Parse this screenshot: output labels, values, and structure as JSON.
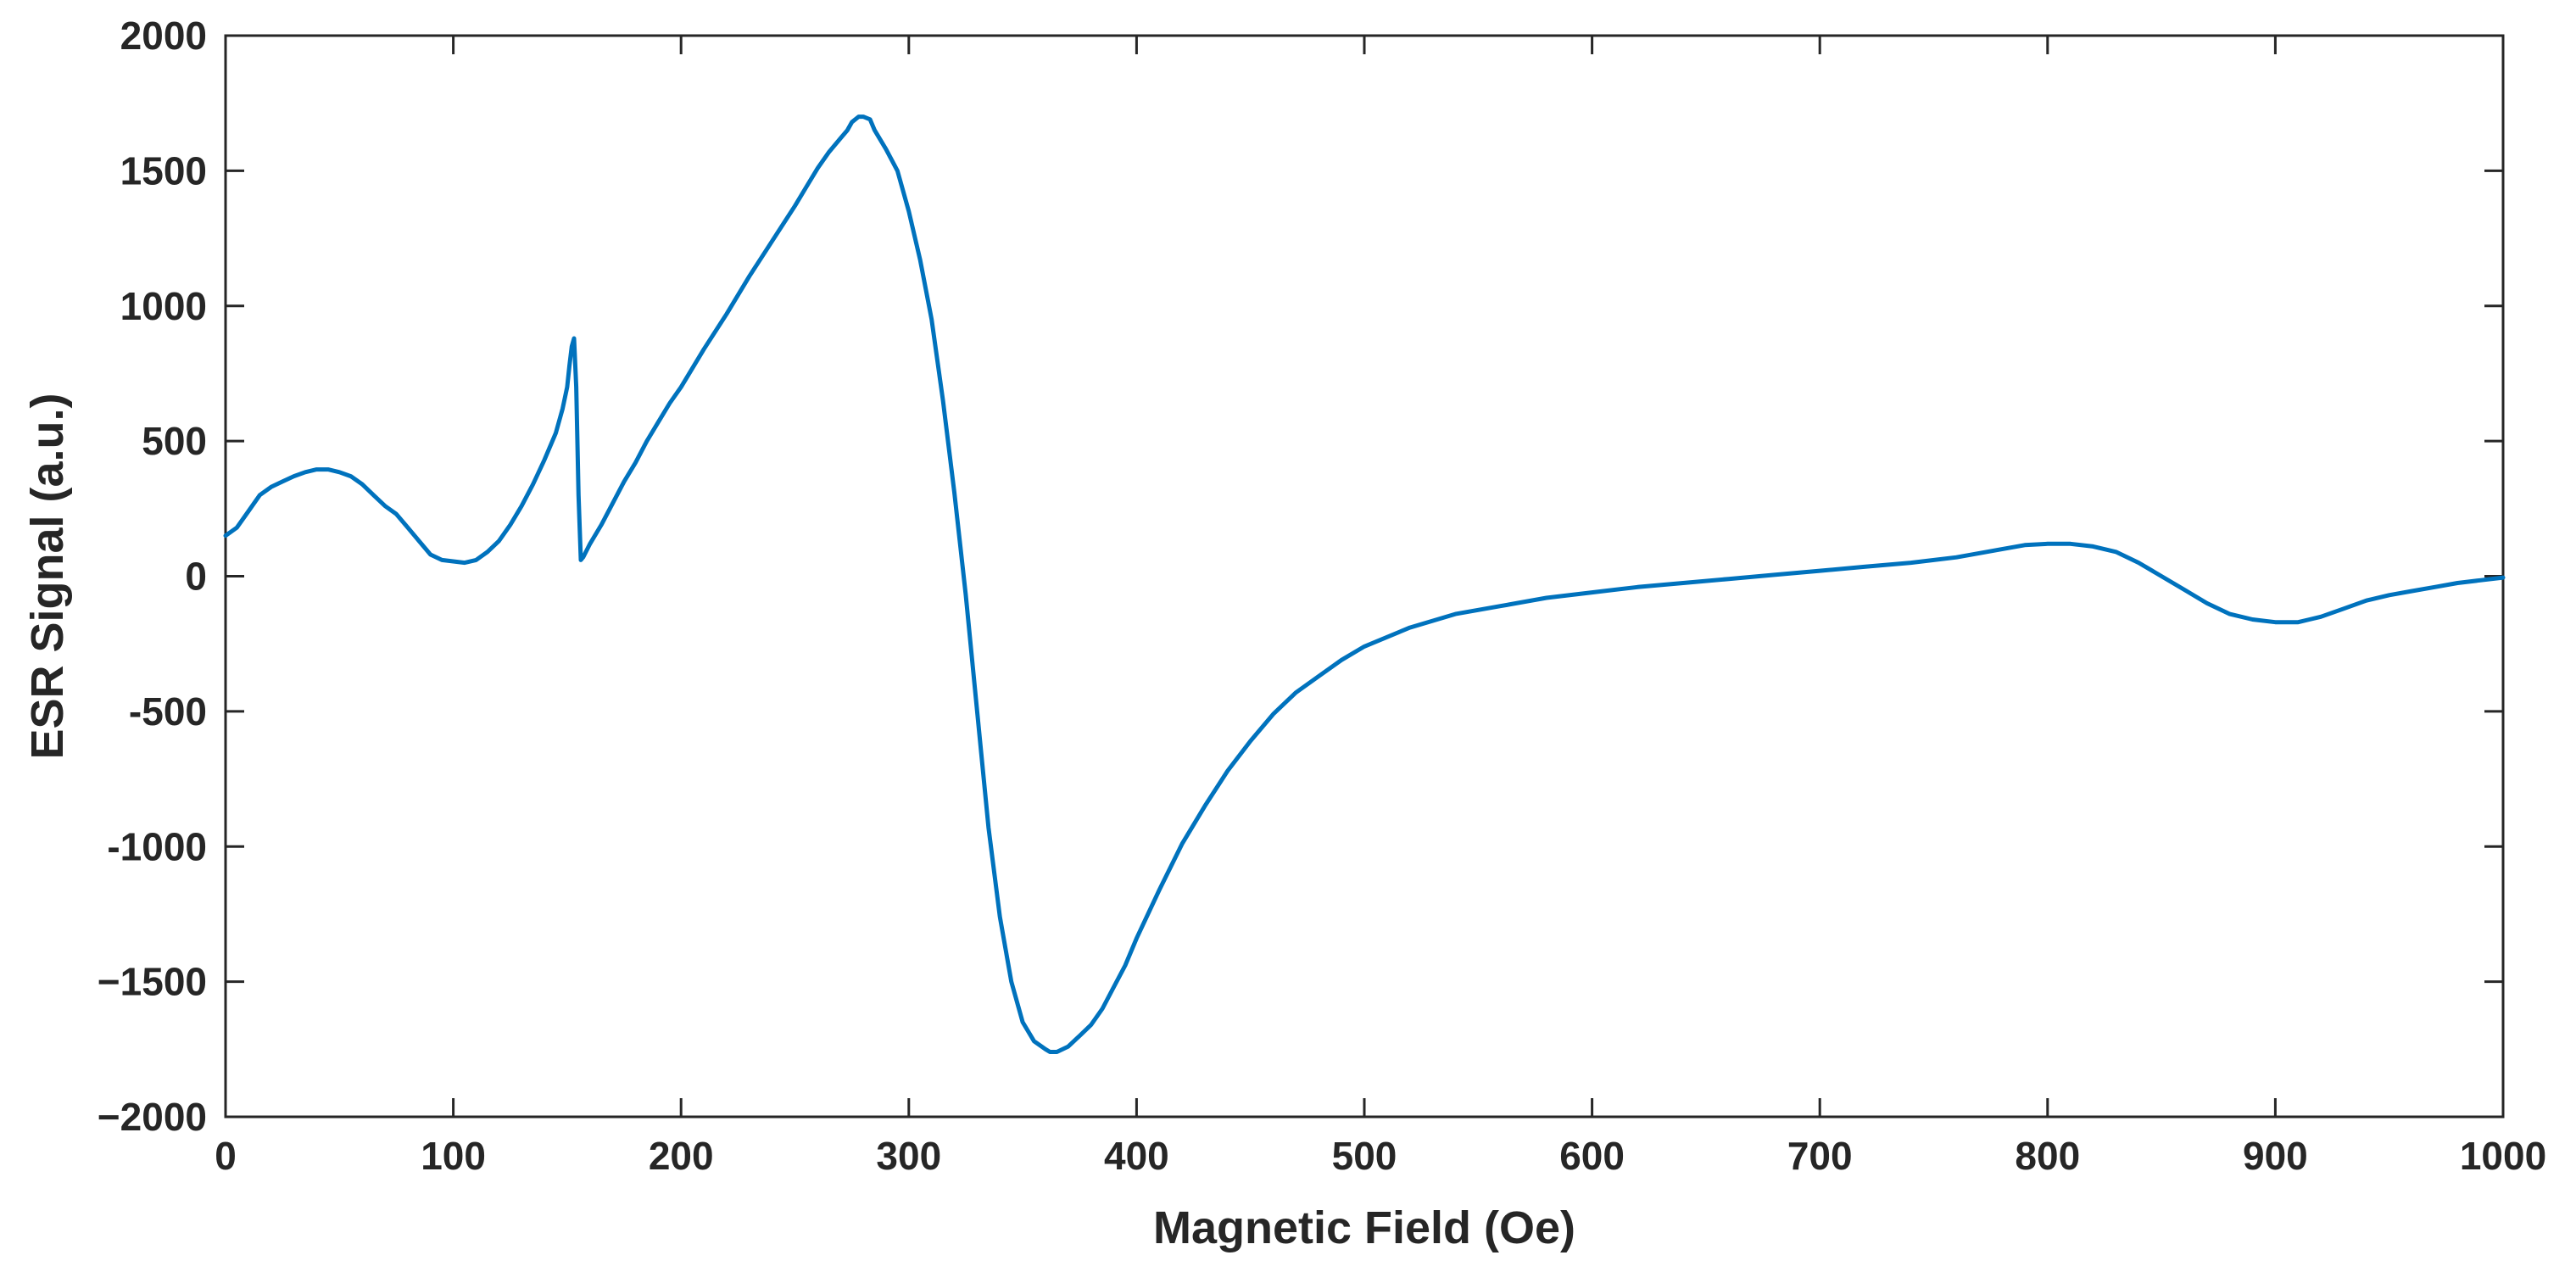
{
  "chart_data": {
    "type": "line",
    "title": "",
    "xlabel": "Magnetic Field (Oe)",
    "ylabel": "ESR Signal (a.u.)",
    "xlim": [
      0,
      1000
    ],
    "ylim": [
      -2000,
      2000
    ],
    "xticks": [
      0,
      100,
      200,
      300,
      400,
      500,
      600,
      700,
      800,
      900,
      1000
    ],
    "yticks": [
      -2000,
      -1500,
      -1000,
      -500,
      0,
      500,
      1000,
      1500,
      2000
    ],
    "xtick_labels": [
      "0",
      "100",
      "200",
      "300",
      "400",
      "500",
      "600",
      "700",
      "800",
      "900",
      "1000"
    ],
    "ytick_labels": [
      "−2000",
      "−1500",
      "-1000",
      "-500",
      "0",
      "500",
      "1000",
      "1500",
      "2000"
    ],
    "grid": false,
    "box": true,
    "line_color": "#0072BD",
    "series": [
      {
        "x": [
          0,
          5,
          10,
          15,
          20,
          25,
          30,
          35,
          40,
          45,
          50,
          55,
          60,
          65,
          70,
          75,
          80,
          85,
          90,
          95,
          100,
          105,
          110,
          115,
          120,
          125,
          130,
          135,
          140,
          145,
          148,
          150,
          151,
          152,
          153,
          154,
          155,
          156,
          157,
          160,
          165,
          170,
          175,
          180,
          185,
          190,
          195,
          200,
          210,
          220,
          230,
          240,
          250,
          255,
          260,
          265,
          270,
          273,
          275,
          278,
          280,
          283,
          285,
          290,
          295,
          300,
          305,
          310,
          315,
          320,
          325,
          330,
          335,
          340,
          345,
          350,
          355,
          360,
          362,
          365,
          370,
          375,
          380,
          385,
          390,
          395,
          400,
          410,
          420,
          430,
          440,
          450,
          460,
          470,
          480,
          490,
          500,
          520,
          540,
          560,
          580,
          600,
          620,
          640,
          660,
          680,
          700,
          720,
          740,
          760,
          780,
          790,
          800,
          810,
          820,
          830,
          840,
          850,
          860,
          870,
          880,
          890,
          900,
          905,
          910,
          915,
          920,
          930,
          940,
          950,
          960,
          970,
          980,
          990,
          1000
        ],
        "y": [
          150,
          180,
          240,
          300,
          330,
          350,
          370,
          385,
          395,
          395,
          385,
          370,
          340,
          300,
          260,
          230,
          180,
          130,
          80,
          60,
          55,
          50,
          60,
          90,
          130,
          190,
          260,
          340,
          430,
          530,
          620,
          700,
          780,
          850,
          880,
          700,
          300,
          60,
          70,
          120,
          190,
          270,
          350,
          420,
          500,
          570,
          640,
          700,
          840,
          970,
          1110,
          1240,
          1370,
          1440,
          1510,
          1570,
          1620,
          1650,
          1680,
          1700,
          1700,
          1690,
          1650,
          1580,
          1500,
          1350,
          1170,
          950,
          650,
          310,
          -70,
          -500,
          -930,
          -1260,
          -1500,
          -1650,
          -1720,
          -1750,
          -1760,
          -1760,
          -1740,
          -1700,
          -1660,
          -1600,
          -1520,
          -1440,
          -1340,
          -1160,
          -990,
          -850,
          -720,
          -610,
          -510,
          -430,
          -370,
          -310,
          -260,
          -190,
          -140,
          -110,
          -80,
          -60,
          -40,
          -25,
          -10,
          5,
          20,
          35,
          50,
          70,
          100,
          115,
          120,
          120,
          110,
          90,
          50,
          0,
          -50,
          -100,
          -140,
          -160,
          -170,
          -170,
          -170,
          -160,
          -150,
          -120,
          -90,
          -70,
          -55,
          -40,
          -25,
          -15,
          -5
        ]
      }
    ]
  }
}
